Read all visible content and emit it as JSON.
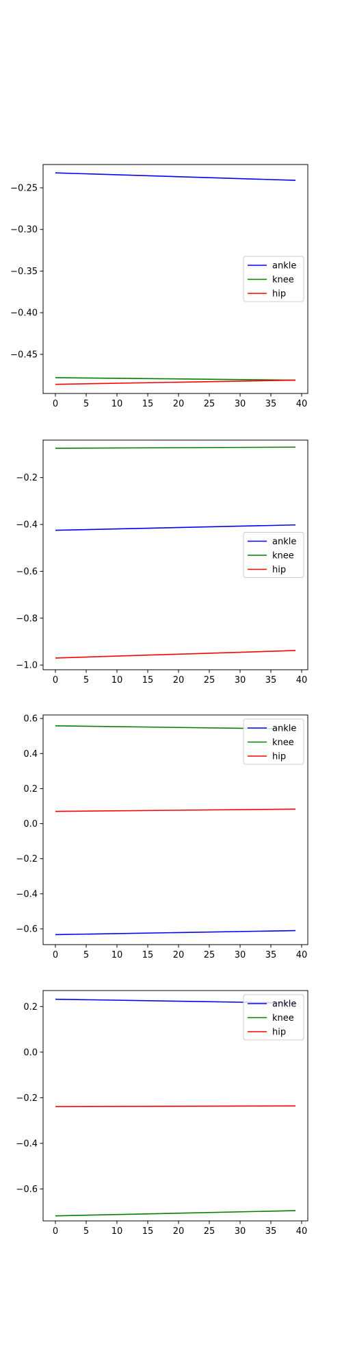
{
  "chart_data": [
    {
      "type": "line",
      "x": [
        0,
        39
      ],
      "xlim": [
        -2,
        41
      ],
      "ylim": [
        -0.497,
        -0.222
      ],
      "xticks": [
        0,
        5,
        10,
        15,
        20,
        25,
        30,
        35,
        40
      ],
      "yticks": [
        -0.25,
        -0.3,
        -0.35,
        -0.4,
        -0.45
      ],
      "ytick_labels": [
        "−0.25",
        "−0.30",
        "−0.35",
        "−0.40",
        "−0.45"
      ],
      "legend": "center-right",
      "grid": false,
      "series": [
        {
          "name": "ankle",
          "color": "#0000ff",
          "values": [
            -0.232,
            -0.241
          ]
        },
        {
          "name": "knee",
          "color": "#008000",
          "values": [
            -0.478,
            -0.481
          ]
        },
        {
          "name": "hip",
          "color": "#ff0000",
          "values": [
            -0.486,
            -0.481
          ]
        }
      ]
    },
    {
      "type": "line",
      "x": [
        0,
        39
      ],
      "xlim": [
        -2,
        41
      ],
      "ylim": [
        -1.02,
        -0.04
      ],
      "xticks": [
        0,
        5,
        10,
        15,
        20,
        25,
        30,
        35,
        40
      ],
      "yticks": [
        -0.2,
        -0.4,
        -0.6,
        -0.8,
        -1.0
      ],
      "ytick_labels": [
        "−0.2",
        "−0.4",
        "−0.6",
        "−0.8",
        "−1.0"
      ],
      "legend": "center-right",
      "grid": false,
      "series": [
        {
          "name": "ankle",
          "color": "#0000ff",
          "values": [
            -0.425,
            -0.402
          ]
        },
        {
          "name": "knee",
          "color": "#008000",
          "values": [
            -0.075,
            -0.07
          ]
        },
        {
          "name": "hip",
          "color": "#ff0000",
          "values": [
            -0.97,
            -0.938
          ]
        }
      ]
    },
    {
      "type": "line",
      "x": [
        0,
        39
      ],
      "xlim": [
        -2,
        41
      ],
      "ylim": [
        -0.69,
        0.62
      ],
      "xticks": [
        0,
        5,
        10,
        15,
        20,
        25,
        30,
        35,
        40
      ],
      "yticks": [
        0.6,
        0.4,
        0.2,
        0.0,
        -0.2,
        -0.4,
        -0.6
      ],
      "ytick_labels": [
        "0.6",
        "0.4",
        "0.2",
        "0.0",
        "−0.2",
        "−0.4",
        "−0.6"
      ],
      "legend": "upper-right",
      "grid": false,
      "series": [
        {
          "name": "ankle",
          "color": "#0000ff",
          "values": [
            -0.633,
            -0.61
          ]
        },
        {
          "name": "knee",
          "color": "#008000",
          "values": [
            0.558,
            0.54
          ]
        },
        {
          "name": "hip",
          "color": "#ff0000",
          "values": [
            0.07,
            0.083
          ]
        }
      ]
    },
    {
      "type": "line",
      "x": [
        0,
        39
      ],
      "xlim": [
        -2,
        41
      ],
      "ylim": [
        -0.74,
        0.27
      ],
      "xticks": [
        0,
        5,
        10,
        15,
        20,
        25,
        30,
        35,
        40
      ],
      "yticks": [
        0.2,
        0.0,
        -0.2,
        -0.4,
        -0.6
      ],
      "ytick_labels": [
        "0.2",
        "0.0",
        "−0.2",
        "−0.4",
        "−0.6"
      ],
      "legend": "upper-right",
      "grid": false,
      "series": [
        {
          "name": "ankle",
          "color": "#0000ff",
          "values": [
            0.232,
            0.215
          ]
        },
        {
          "name": "knee",
          "color": "#008000",
          "values": [
            -0.718,
            -0.695
          ]
        },
        {
          "name": "hip",
          "color": "#ff0000",
          "values": [
            -0.239,
            -0.236
          ]
        }
      ]
    }
  ]
}
